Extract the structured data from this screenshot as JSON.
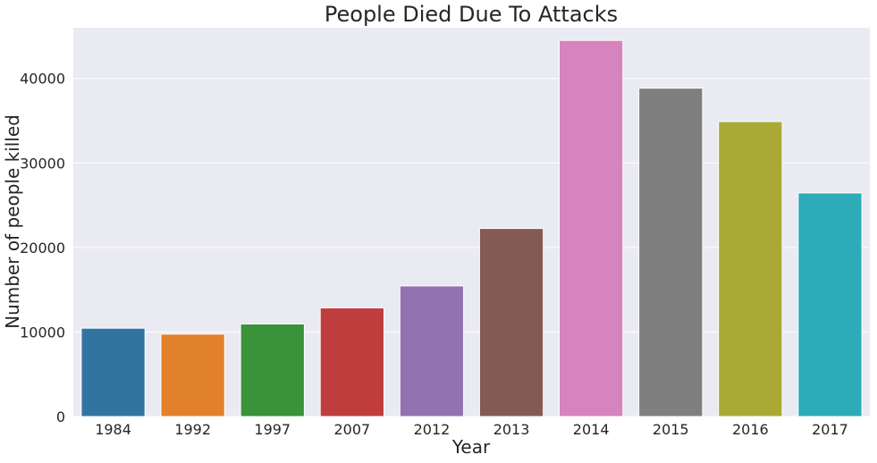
{
  "chart_data": {
    "type": "bar",
    "title": "People Died Due To Attacks",
    "xlabel": "Year",
    "ylabel": "Number of people killed",
    "categories": [
      "1984",
      "1992",
      "1997",
      "2007",
      "2012",
      "2013",
      "2014",
      "2015",
      "2016",
      "2017"
    ],
    "values": [
      10450,
      9750,
      10950,
      12850,
      15450,
      22250,
      44500,
      38850,
      34900,
      26450
    ],
    "colors": [
      "#3274a1",
      "#e1812c",
      "#3a923a",
      "#c03d3e",
      "#9372b2",
      "#845b53",
      "#d684bd",
      "#7f7f7f",
      "#a9aa35",
      "#2eabb8"
    ],
    "ylim": [
      0,
      46000
    ],
    "yticks": [
      0,
      10000,
      20000,
      30000,
      40000
    ],
    "grid": true,
    "background": "#eaeaf2",
    "gridcolor": "#ffffff"
  }
}
